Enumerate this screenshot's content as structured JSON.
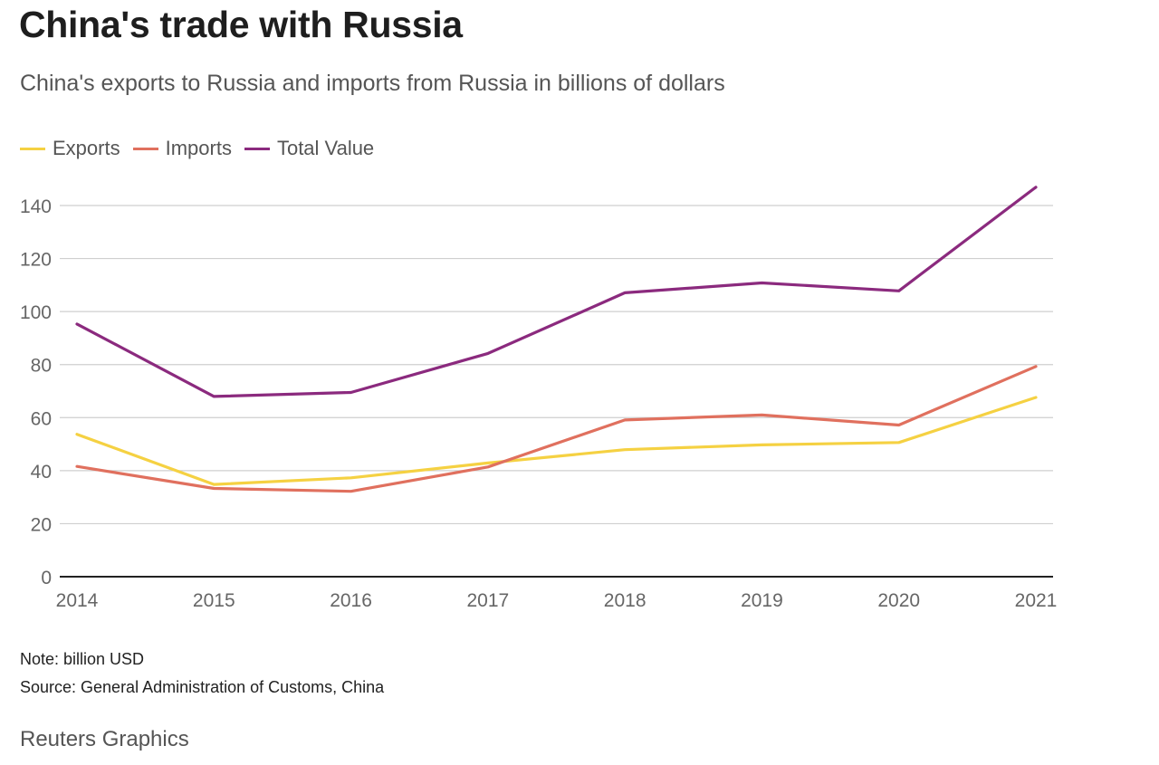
{
  "header": {
    "title": "China's trade with Russia",
    "subtitle": "China's exports to Russia and imports from Russia in billions of dollars"
  },
  "chart_data": {
    "type": "line",
    "title": "China's trade with Russia",
    "subtitle": "China's exports to Russia and imports from Russia in billions of dollars",
    "x": [
      "2014",
      "2015",
      "2016",
      "2017",
      "2018",
      "2019",
      "2020",
      "2021"
    ],
    "ylim": [
      0,
      150
    ],
    "yticks": [
      0,
      20,
      40,
      60,
      80,
      100,
      120,
      140
    ],
    "grid": true,
    "legend_position": "top-left",
    "series": [
      {
        "name": "Exports",
        "color": "#f5d142",
        "values": [
          53.7,
          34.8,
          37.3,
          42.9,
          47.9,
          49.7,
          50.6,
          67.6
        ]
      },
      {
        "name": "Imports",
        "color": "#e0705e",
        "values": [
          41.6,
          33.3,
          32.2,
          41.4,
          59.1,
          61.0,
          57.2,
          79.3
        ]
      },
      {
        "name": "Total Value",
        "color": "#8b2a7e",
        "values": [
          95.3,
          68.0,
          69.5,
          84.2,
          107.1,
          110.8,
          107.8,
          146.9
        ]
      }
    ]
  },
  "footer": {
    "note": "Note: billion USD",
    "source": "Source: General Administration of Customs, China",
    "credit": "Reuters Graphics"
  }
}
